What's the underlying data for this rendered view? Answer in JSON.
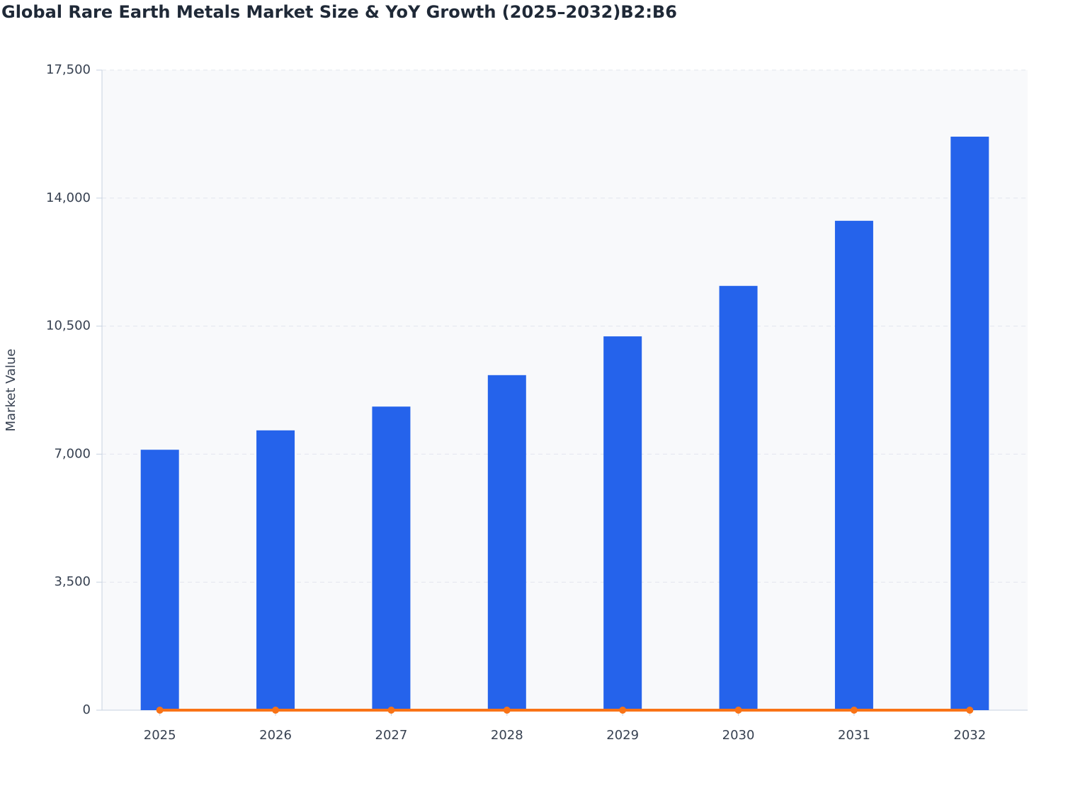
{
  "chart_data": {
    "type": "bar",
    "title": "Global Rare Earth Metals Market Size & YoY Growth (2025–2032)B2:B6",
    "y_label": "Market Value",
    "categories": [
      "2025",
      "2026",
      "2027",
      "2028",
      "2029",
      "2030",
      "2031",
      "2032"
    ],
    "series": [
      {
        "type": "bar",
        "color": "#2563eb",
        "values": [
          7120,
          7650,
          8300,
          9160,
          10220,
          11600,
          13380,
          15680
        ]
      },
      {
        "type": "line",
        "color": "#f97316",
        "values": [
          0,
          0,
          0,
          0,
          0,
          0,
          0,
          0
        ]
      }
    ],
    "ylim": [
      0,
      17500
    ],
    "yticks": [
      0,
      {
        "value": 3500,
        "label": "3,500"
      },
      {
        "value": 7000,
        "label": "7,000"
      },
      {
        "value": 10500,
        "label": "10,500"
      },
      {
        "value": 14000,
        "label": "14,000"
      },
      {
        "value": 17500,
        "label": "17,500"
      }
    ],
    "grid": true
  }
}
